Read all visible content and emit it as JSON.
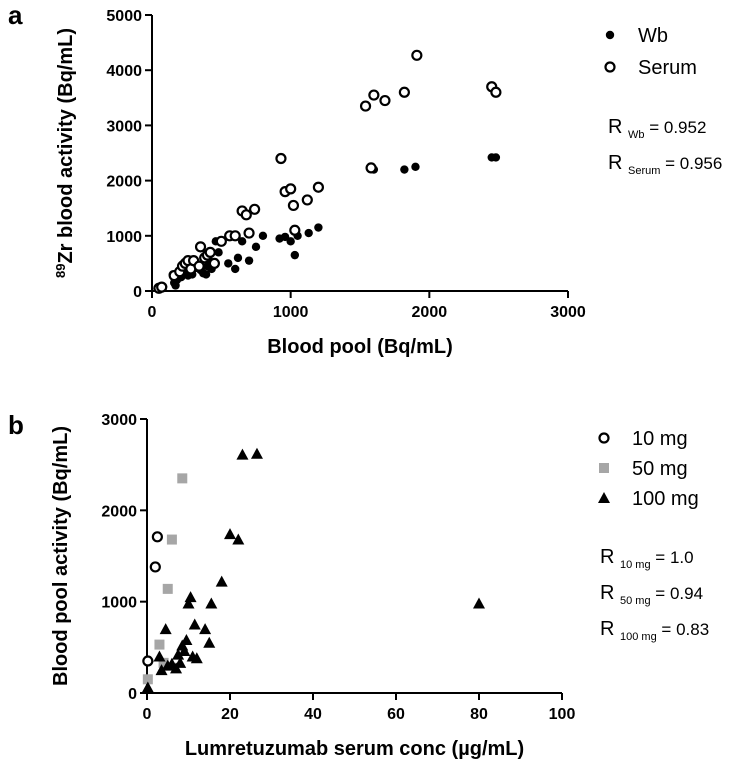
{
  "chart_data": [
    {
      "panel": "a",
      "type": "scatter",
      "xlabel": "Blood pool (Bq/mL)",
      "ylabel_sup": "89",
      "ylabel": "Zr blood activity (Bq/mL)",
      "xlim": [
        0,
        3000
      ],
      "ylim": [
        0,
        5000
      ],
      "xticks": [
        "0",
        "1000",
        "2000",
        "3000"
      ],
      "yticks": [
        "0",
        "1000",
        "2000",
        "3000",
        "4000",
        "5000"
      ],
      "legend_position": "top-right",
      "series": [
        {
          "name": "Wb",
          "marker": "filled-circle",
          "color": "#000000",
          "points": [
            [
              40,
              40
            ],
            [
              60,
              60
            ],
            [
              80,
              80
            ],
            [
              150,
              300
            ],
            [
              160,
              150
            ],
            [
              170,
              100
            ],
            [
              180,
              200
            ],
            [
              190,
              320
            ],
            [
              200,
              280
            ],
            [
              210,
              250
            ],
            [
              220,
              300
            ],
            [
              240,
              330
            ],
            [
              260,
              280
            ],
            [
              270,
              350
            ],
            [
              290,
              300
            ],
            [
              300,
              400
            ],
            [
              320,
              420
            ],
            [
              350,
              380
            ],
            [
              370,
              320
            ],
            [
              390,
              300
            ],
            [
              400,
              450
            ],
            [
              420,
              500
            ],
            [
              430,
              400
            ],
            [
              460,
              900
            ],
            [
              480,
              700
            ],
            [
              550,
              500
            ],
            [
              600,
              400
            ],
            [
              620,
              600
            ],
            [
              650,
              900
            ],
            [
              700,
              550
            ],
            [
              750,
              800
            ],
            [
              800,
              1000
            ],
            [
              920,
              950
            ],
            [
              960,
              980
            ],
            [
              1000,
              900
            ],
            [
              1030,
              650
            ],
            [
              1050,
              1000
            ],
            [
              1130,
              1050
            ],
            [
              1200,
              1150
            ],
            [
              1600,
              2200
            ],
            [
              1820,
              2200
            ],
            [
              1900,
              2250
            ],
            [
              2450,
              2420
            ],
            [
              2480,
              2420
            ]
          ]
        },
        {
          "name": "Serum",
          "marker": "open-circle",
          "color": "#000000",
          "points": [
            [
              50,
              50
            ],
            [
              70,
              70
            ],
            [
              160,
              280
            ],
            [
              200,
              350
            ],
            [
              220,
              450
            ],
            [
              240,
              500
            ],
            [
              260,
              550
            ],
            [
              280,
              400
            ],
            [
              300,
              550
            ],
            [
              340,
              450
            ],
            [
              350,
              800
            ],
            [
              380,
              600
            ],
            [
              400,
              650
            ],
            [
              420,
              700
            ],
            [
              450,
              500
            ],
            [
              500,
              900
            ],
            [
              560,
              1000
            ],
            [
              600,
              1000
            ],
            [
              650,
              1450
            ],
            [
              680,
              1380
            ],
            [
              700,
              1050
            ],
            [
              740,
              1480
            ],
            [
              930,
              2400
            ],
            [
              960,
              1800
            ],
            [
              1000,
              1850
            ],
            [
              1020,
              1550
            ],
            [
              1030,
              1100
            ],
            [
              1120,
              1650
            ],
            [
              1200,
              1880
            ],
            [
              1540,
              3350
            ],
            [
              1580,
              2230
            ],
            [
              1600,
              3550
            ],
            [
              1680,
              3450
            ],
            [
              1820,
              3600
            ],
            [
              1910,
              4270
            ],
            [
              2450,
              3700
            ],
            [
              2480,
              3600
            ]
          ]
        }
      ],
      "annotations": [
        {
          "r": "R",
          "sub": "Wb",
          "value": "= 0.952"
        },
        {
          "r": "R",
          "sub": "Serum",
          "value": "= 0.956"
        }
      ]
    },
    {
      "panel": "b",
      "type": "scatter",
      "xlabel": "Lumretuzumab serum conc (µg/mL)",
      "ylabel": "Blood pool activity (Bq/mL)",
      "xlim": [
        0,
        100
      ],
      "ylim": [
        0,
        3000
      ],
      "xticks": [
        "0",
        "20",
        "40",
        "60",
        "80",
        "100"
      ],
      "yticks": [
        "0",
        "1000",
        "2000",
        "3000"
      ],
      "legend_position": "top-right",
      "series": [
        {
          "name": "10 mg",
          "marker": "open-circle",
          "color": "#000000",
          "points": [
            [
              0.2,
              350
            ],
            [
              2,
              1380
            ],
            [
              2.5,
              1710
            ]
          ]
        },
        {
          "name": "50 mg",
          "marker": "square",
          "color": "#a6a6a6",
          "points": [
            [
              0.2,
              150
            ],
            [
              3,
              530
            ],
            [
              5,
              1140
            ],
            [
              6,
              1680
            ],
            [
              8.5,
              2350
            ],
            [
              4,
              330
            ]
          ]
        },
        {
          "name": "100 mg",
          "marker": "triangle",
          "color": "#000000",
          "points": [
            [
              0.2,
              60
            ],
            [
              3,
              400
            ],
            [
              3.5,
              250
            ],
            [
              4.5,
              700
            ],
            [
              5,
              300
            ],
            [
              6,
              320
            ],
            [
              7,
              270
            ],
            [
              7.5,
              420
            ],
            [
              8,
              330
            ],
            [
              8.5,
              520
            ],
            [
              9,
              460
            ],
            [
              9.5,
              580
            ],
            [
              10,
              980
            ],
            [
              10.5,
              1050
            ],
            [
              11,
              400
            ],
            [
              11.5,
              750
            ],
            [
              12,
              380
            ],
            [
              14,
              700
            ],
            [
              15,
              550
            ],
            [
              15.5,
              980
            ],
            [
              18,
              1220
            ],
            [
              20,
              1740
            ],
            [
              22,
              1680
            ],
            [
              23,
              2610
            ],
            [
              26.5,
              2620
            ],
            [
              80,
              980
            ]
          ]
        }
      ],
      "annotations": [
        {
          "r": "R",
          "sub": "10 mg",
          "value": "= 1.0"
        },
        {
          "r": "R",
          "sub": "50 mg",
          "value": "= 0.94"
        },
        {
          "r": "R",
          "sub": "100 mg",
          "value": "= 0.83"
        }
      ]
    }
  ]
}
